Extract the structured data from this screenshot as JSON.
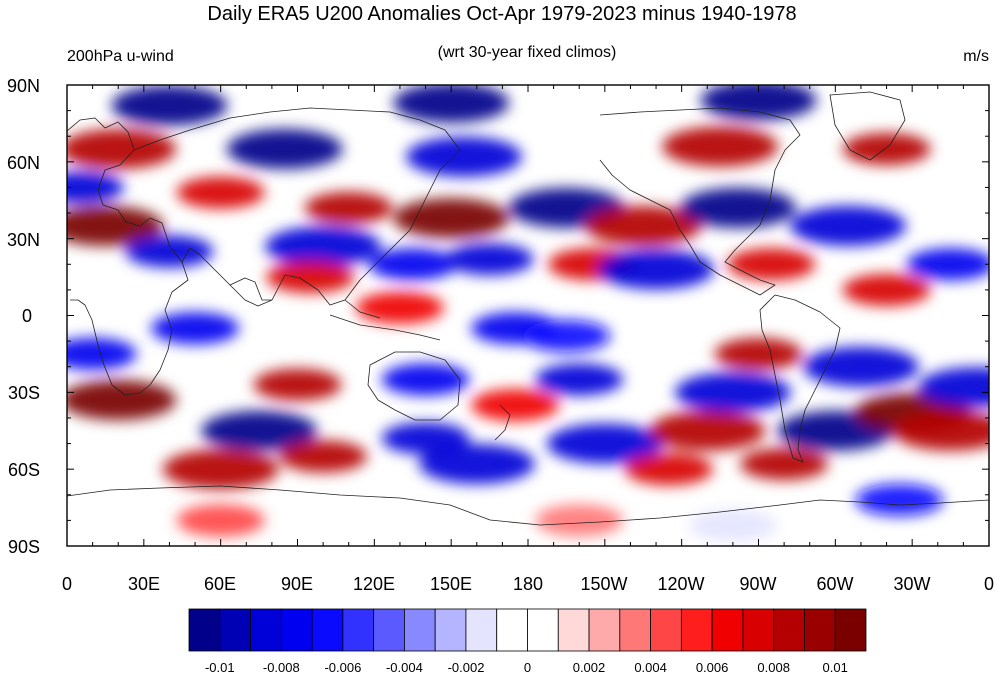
{
  "title": "Daily ERA5 U200 Anomalies Oct-Apr 1979-2023 minus 1940-1978",
  "left_string": "200hPa u-wind",
  "center_string": "(wrt 30-year fixed climos)",
  "right_string": "m/s",
  "map": {
    "projection": "cylindrical-equidistant",
    "lon_range": [
      0,
      360
    ],
    "lat_range": [
      -90,
      90
    ],
    "x_tick_labels": [
      "0",
      "30E",
      "60E",
      "90E",
      "120E",
      "150E",
      "180",
      "150W",
      "120W",
      "90W",
      "60W",
      "30W",
      "0"
    ],
    "y_tick_labels": [
      "90N",
      "60N",
      "30N",
      "0",
      "30S",
      "60S",
      "90S"
    ],
    "coastlines": true
  },
  "colorbar": {
    "colors": [
      "#00008a",
      "#0000b4",
      "#0000d8",
      "#0000f0",
      "#0a0aff",
      "#3232ff",
      "#5a5aff",
      "#8888ff",
      "#b4b4ff",
      "#e4e4ff",
      "#ffffff",
      "#ffffff",
      "#ffd8d8",
      "#ffaaaa",
      "#ff7878",
      "#ff4646",
      "#ff1e1e",
      "#f00000",
      "#d80000",
      "#b40000",
      "#9a0000",
      "#7a0000"
    ],
    "labels": [
      "-0.01",
      "-0.008",
      "-0.006",
      "-0.004",
      "-0.002",
      "0",
      "0.002",
      "0.004",
      "0.006",
      "0.008",
      "0.01"
    ]
  },
  "chart_data": {
    "type": "heatmap",
    "variable": "200hPa u-wind",
    "units": "m/s",
    "levels": [
      -0.01,
      -0.008,
      -0.006,
      -0.004,
      -0.002,
      0,
      0.002,
      0.004,
      0.006,
      0.008,
      0.01
    ],
    "anomaly_regions": [
      {
        "lon": 40,
        "lat": 82,
        "value": -0.011
      },
      {
        "lon": 150,
        "lat": 83,
        "value": -0.011
      },
      {
        "lon": 270,
        "lat": 84,
        "value": -0.011
      },
      {
        "lon": 20,
        "lat": 65,
        "value": 0.009
      },
      {
        "lon": 85,
        "lat": 65,
        "value": -0.01
      },
      {
        "lon": 155,
        "lat": 62,
        "value": -0.009
      },
      {
        "lon": 255,
        "lat": 66,
        "value": 0.009
      },
      {
        "lon": 320,
        "lat": 65,
        "value": 0.008
      },
      {
        "lon": 5,
        "lat": 50,
        "value": -0.008
      },
      {
        "lon": 60,
        "lat": 48,
        "value": 0.007
      },
      {
        "lon": 110,
        "lat": 42,
        "value": 0.008
      },
      {
        "lon": 150,
        "lat": 38,
        "value": 0.011
      },
      {
        "lon": 195,
        "lat": 42,
        "value": -0.01
      },
      {
        "lon": 225,
        "lat": 35,
        "value": 0.009
      },
      {
        "lon": 262,
        "lat": 42,
        "value": -0.011
      },
      {
        "lon": 305,
        "lat": 35,
        "value": -0.009
      },
      {
        "lon": 15,
        "lat": 35,
        "value": 0.01
      },
      {
        "lon": 40,
        "lat": 25,
        "value": -0.008
      },
      {
        "lon": 100,
        "lat": 27,
        "value": -0.009
      },
      {
        "lon": 95,
        "lat": 15,
        "value": 0.007
      },
      {
        "lon": 135,
        "lat": 20,
        "value": -0.007
      },
      {
        "lon": 165,
        "lat": 22,
        "value": -0.008
      },
      {
        "lon": 205,
        "lat": 20,
        "value": 0.007
      },
      {
        "lon": 230,
        "lat": 18,
        "value": -0.009
      },
      {
        "lon": 275,
        "lat": 20,
        "value": 0.007
      },
      {
        "lon": 320,
        "lat": 10,
        "value": 0.007
      },
      {
        "lon": 345,
        "lat": 20,
        "value": -0.007
      },
      {
        "lon": 130,
        "lat": 3,
        "value": 0.006
      },
      {
        "lon": 50,
        "lat": -5,
        "value": -0.007
      },
      {
        "lon": 10,
        "lat": -15,
        "value": -0.007
      },
      {
        "lon": 175,
        "lat": -5,
        "value": -0.007
      },
      {
        "lon": 195,
        "lat": -8,
        "value": -0.006
      },
      {
        "lon": 270,
        "lat": -15,
        "value": 0.008
      },
      {
        "lon": 310,
        "lat": -20,
        "value": -0.009
      },
      {
        "lon": 20,
        "lat": -33,
        "value": 0.01
      },
      {
        "lon": 90,
        "lat": -27,
        "value": 0.008
      },
      {
        "lon": 140,
        "lat": -25,
        "value": -0.007
      },
      {
        "lon": 175,
        "lat": -35,
        "value": 0.006
      },
      {
        "lon": 200,
        "lat": -25,
        "value": -0.008
      },
      {
        "lon": 260,
        "lat": -30,
        "value": -0.009
      },
      {
        "lon": 300,
        "lat": -45,
        "value": -0.01
      },
      {
        "lon": 330,
        "lat": -38,
        "value": 0.01
      },
      {
        "lon": 355,
        "lat": -28,
        "value": -0.009
      },
      {
        "lon": 75,
        "lat": -45,
        "value": -0.01
      },
      {
        "lon": 140,
        "lat": -48,
        "value": -0.008
      },
      {
        "lon": 210,
        "lat": -50,
        "value": -0.009
      },
      {
        "lon": 250,
        "lat": -45,
        "value": 0.009
      },
      {
        "lon": 345,
        "lat": -45,
        "value": 0.009
      },
      {
        "lon": 60,
        "lat": -60,
        "value": 0.009
      },
      {
        "lon": 100,
        "lat": -55,
        "value": 0.008
      },
      {
        "lon": 160,
        "lat": -58,
        "value": -0.009
      },
      {
        "lon": 235,
        "lat": -60,
        "value": 0.007
      },
      {
        "lon": 280,
        "lat": -58,
        "value": 0.008
      },
      {
        "lon": 325,
        "lat": -72,
        "value": -0.006
      },
      {
        "lon": 60,
        "lat": -80,
        "value": 0.004
      },
      {
        "lon": 200,
        "lat": -80,
        "value": 0.003
      },
      {
        "lon": 260,
        "lat": -82,
        "value": -0.002
      }
    ]
  }
}
